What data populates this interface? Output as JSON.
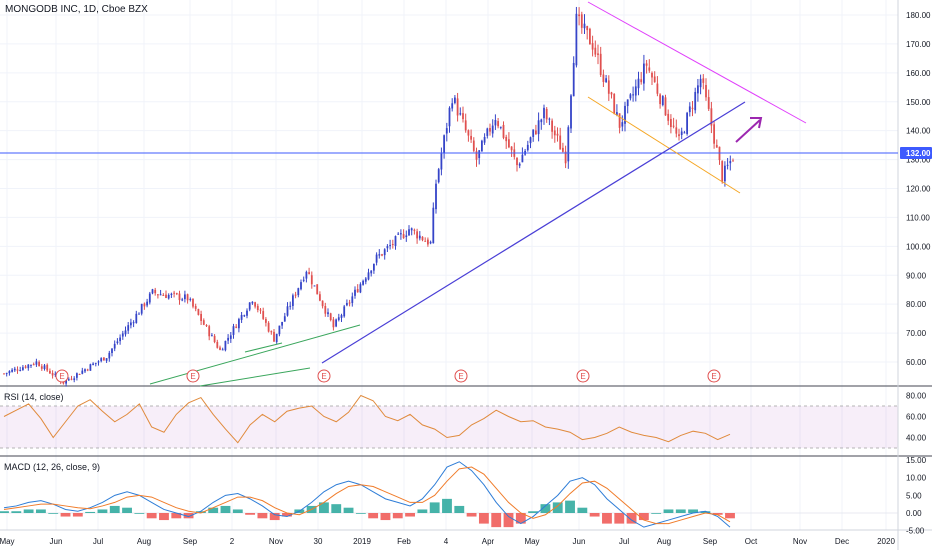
{
  "colors": {
    "up": "#3544c8",
    "down": "#e0504f",
    "rsi_line": "#e08a3c",
    "rsi_band": "#9c27b0",
    "macd_line": "#2e7dd7",
    "signal_line": "#f07c2a",
    "hist_up": "#26a69a",
    "hist_down": "#ef5350",
    "price_line": "#3d5afe",
    "upper_trend": "#e040fb",
    "lower_channel": "#f5a623",
    "support_trend": "#4a3fd6",
    "green_trend": "#3aa65c",
    "arrow": "#9c27b0"
  },
  "header": {
    "symbol_title": "MONGODB INC, 1D, Cboe BZX"
  },
  "rsi_panel": {
    "title": "RSI (14, close)"
  },
  "macd_panel": {
    "title": "MACD (12, 26, close, 9)"
  },
  "price_tag": "132.00",
  "earnings_badge": "E",
  "chart_data": [
    {
      "type": "candlestick",
      "title": "MONGODB INC, 1D, Cboe BZX",
      "y_ticks": [
        "180.00",
        "170.00",
        "160.00",
        "150.00",
        "140.00",
        "130.00",
        "120.00",
        "110.00",
        "100.00",
        "90.00",
        "80.00",
        "70.00",
        "60.00"
      ],
      "x_ticks": [
        "May",
        "Jun",
        "Jul",
        "Aug",
        "Sep",
        "2",
        "Nov",
        "30",
        "2019",
        "Feb",
        "4",
        "Apr",
        "May",
        "Jun",
        "Jul",
        "Aug",
        "Sep",
        "Oct",
        "Nov",
        "Dec",
        "2020"
      ],
      "horizontal_line": 132.0,
      "swing_points": [
        {
          "i": 0,
          "v": 56
        },
        {
          "i": 12,
          "v": 60
        },
        {
          "i": 22,
          "v": 53
        },
        {
          "i": 38,
          "v": 62
        },
        {
          "i": 55,
          "v": 84
        },
        {
          "i": 68,
          "v": 82
        },
        {
          "i": 80,
          "v": 64
        },
        {
          "i": 92,
          "v": 82
        },
        {
          "i": 100,
          "v": 68
        },
        {
          "i": 112,
          "v": 92
        },
        {
          "i": 122,
          "v": 72
        },
        {
          "i": 138,
          "v": 96
        },
        {
          "i": 150,
          "v": 106
        },
        {
          "i": 158,
          "v": 101
        },
        {
          "i": 160,
          "v": 122
        },
        {
          "i": 166,
          "v": 152
        },
        {
          "i": 175,
          "v": 130
        },
        {
          "i": 182,
          "v": 145
        },
        {
          "i": 190,
          "v": 128
        },
        {
          "i": 200,
          "v": 146
        },
        {
          "i": 208,
          "v": 131
        },
        {
          "i": 212,
          "v": 178
        },
        {
          "i": 218,
          "v": 170
        },
        {
          "i": 228,
          "v": 142
        },
        {
          "i": 238,
          "v": 163
        },
        {
          "i": 250,
          "v": 136
        },
        {
          "i": 258,
          "v": 158
        },
        {
          "i": 262,
          "v": 142
        },
        {
          "i": 266,
          "v": 124
        },
        {
          "i": 270,
          "v": 131
        }
      ]
    },
    {
      "type": "line",
      "title": "RSI (14, close)",
      "y_ticks": [
        "80.00",
        "60.00",
        "40.00"
      ],
      "band": [
        30,
        70
      ],
      "series": [
        {
          "values": [
            60,
            66,
            72,
            58,
            40,
            55,
            70,
            76,
            65,
            55,
            62,
            72,
            50,
            45,
            62,
            73,
            78,
            62,
            48,
            35,
            52,
            62,
            55,
            65,
            68,
            70,
            60,
            55,
            64,
            80,
            75,
            60,
            56,
            62,
            52,
            48,
            40,
            42,
            52,
            58,
            66,
            60,
            55,
            56,
            50,
            48,
            45,
            38,
            40,
            44,
            50,
            45,
            42,
            40,
            36,
            42,
            46,
            44,
            38,
            43
          ]
        }
      ]
    },
    {
      "type": "bar",
      "title": "MACD (12, 26, close, 9)",
      "y_ticks": [
        "15.00",
        "10.00",
        "5.00",
        "0.00",
        "-5.00"
      ],
      "series": [
        {
          "values": [
            1.5,
            2,
            3,
            3.5,
            2.5,
            1,
            0.5,
            1.5,
            3,
            5,
            6,
            5,
            3,
            1,
            0,
            -1,
            0.5,
            3,
            5,
            5.5,
            4,
            2,
            -0.5,
            -1,
            0.5,
            3,
            6,
            8,
            9,
            8,
            6,
            4,
            3,
            2,
            4,
            8,
            13,
            14.5,
            12,
            8,
            3,
            -1,
            -3,
            -1,
            2,
            5,
            9,
            10,
            8,
            4,
            1,
            -2,
            -4,
            -3,
            -2,
            -1,
            0,
            0.5,
            -1,
            -4
          ]
        },
        {
          "values": [
            1,
            1.5,
            2,
            2.5,
            2.5,
            2,
            1.5,
            1.2,
            2,
            3,
            4.5,
            5,
            4.5,
            3,
            1.5,
            0.5,
            0,
            1.5,
            3,
            4.5,
            4.5,
            3.5,
            1.5,
            0,
            -0.5,
            1,
            3,
            5.5,
            7.5,
            8,
            7.5,
            6,
            4.5,
            3,
            3,
            5,
            9,
            12.5,
            13,
            11,
            7,
            3,
            0,
            -1.5,
            -0.5,
            2,
            5.5,
            8.5,
            9,
            7,
            4,
            1,
            -2,
            -3,
            -3,
            -2,
            -1,
            0,
            -0.5,
            -2.5
          ]
        }
      ]
    }
  ]
}
